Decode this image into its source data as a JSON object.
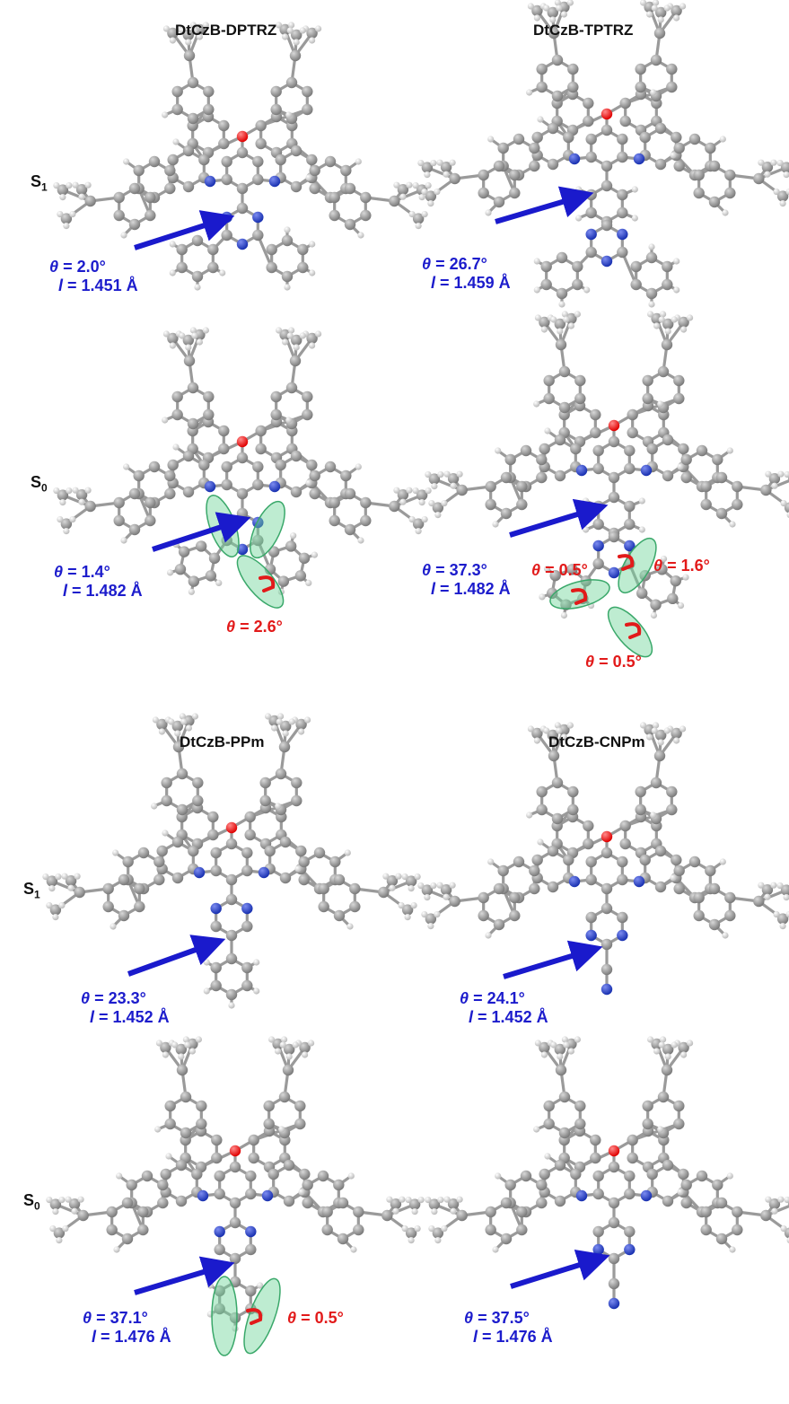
{
  "colors": {
    "arrow": "#1a1acc",
    "torsion": "#e21a1a",
    "ellipse": "#6fd49a",
    "carbon": "#7a7a7a",
    "hydrogen": "#dedede",
    "oxygen": "#e00000",
    "nitrogen": "#1830b0"
  },
  "titles": {
    "dptrz": "DtCzB-DPTRZ",
    "tptrz": "DtCzB-TPTRZ",
    "ppm": "DtCzB-PPm",
    "cnpm": "DtCzB-CNPm"
  },
  "states": {
    "s1_a": "S1",
    "s0_a": "S0",
    "s1_b": "S1",
    "s0_b": "S0"
  },
  "state_parts": {
    "letter": "S",
    "s1_sub": "1",
    "s0_sub": "0"
  },
  "symbols": {
    "theta": "θ",
    "l": "l",
    "deg": "°",
    "ang": "Å"
  },
  "annotations": {
    "dptrz_s1": {
      "theta": "= 2.0°",
      "l": "= 1.451 Å"
    },
    "dptrz_s0": {
      "theta": "= 1.4°",
      "l": "= 1.482 Å",
      "red": [
        "= 2.6°"
      ]
    },
    "tptrz_s1": {
      "theta": "= 26.7°",
      "l": "= 1.459 Å"
    },
    "tptrz_s0": {
      "theta": "= 37.3°",
      "l": "= 1.482 Å",
      "red": [
        "= 0.5°",
        "= 1.6°",
        "= 0.5°"
      ]
    },
    "ppm_s1": {
      "theta": "= 23.3°",
      "l": "= 1.452 Å"
    },
    "ppm_s0": {
      "theta": "= 37.1°",
      "l": "= 1.476 Å",
      "red": [
        "= 0.5°"
      ]
    },
    "cnpm_s1": {
      "theta": "= 24.1°",
      "l": "= 1.452 Å"
    },
    "cnpm_s0": {
      "theta": "= 37.5°",
      "l": "= 1.476 Å"
    }
  }
}
